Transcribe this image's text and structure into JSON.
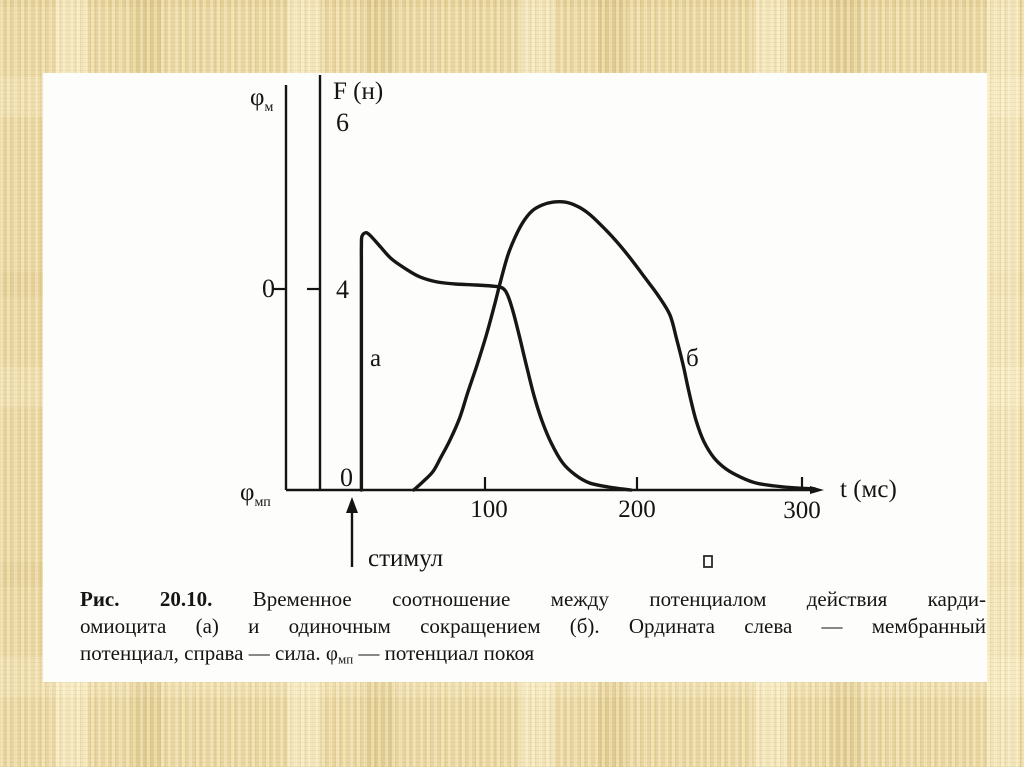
{
  "figure": {
    "kind": "slide-with-textbook-figure",
    "ink_color": "#161616",
    "panel_color": "#fdfdfb",
    "background_color": "#e9d6a0"
  },
  "chart_data": {
    "type": "line",
    "xlabel": "t (мс)",
    "x_unit": "мс",
    "x_ticks": [
      100,
      200,
      300
    ],
    "x_range": [
      0,
      320
    ],
    "grid": false,
    "legend": "inline curve labels",
    "left_axis": {
      "top_label_symbol": "φ",
      "top_label_sub": "м",
      "zero_label": "0",
      "bottom_label_symbol": "φ",
      "bottom_label_sub": "мп"
    },
    "right_axis": {
      "title": "F (н)",
      "unit": "н",
      "top_value": "6",
      "mid_value": "4",
      "zero_value": "0",
      "range": [
        0,
        6
      ]
    },
    "stimulus_label": "стимул",
    "series": [
      {
        "name": "а",
        "points_t_F": [
          [
            22,
            0
          ],
          [
            22,
            1.6
          ],
          [
            22,
            3.2
          ],
          [
            22,
            4.4
          ],
          [
            22,
            4.86
          ],
          [
            22.4,
            5.05
          ],
          [
            25,
            5.12
          ],
          [
            28,
            5.05
          ],
          [
            34,
            4.84
          ],
          [
            41,
            4.6
          ],
          [
            50,
            4.4
          ],
          [
            59,
            4.24
          ],
          [
            70,
            4.14
          ],
          [
            81,
            4.1
          ],
          [
            94,
            4.08
          ],
          [
            104,
            4.06
          ],
          [
            111,
            4.02
          ],
          [
            114.5,
            3.86
          ],
          [
            118,
            3.52
          ],
          [
            122,
            3.02
          ],
          [
            126.5,
            2.43
          ],
          [
            131,
            1.87
          ],
          [
            136,
            1.37
          ],
          [
            142,
            0.92
          ],
          [
            149,
            0.54
          ],
          [
            157,
            0.3
          ],
          [
            166,
            0.14
          ],
          [
            178,
            0.06
          ],
          [
            192,
            0
          ]
        ]
      },
      {
        "name": "б",
        "points_t_F": [
          [
            55,
            0
          ],
          [
            60,
            0.14
          ],
          [
            67,
            0.36
          ],
          [
            72,
            0.64
          ],
          [
            78,
            1
          ],
          [
            84,
            1.43
          ],
          [
            89,
            1.93
          ],
          [
            95,
            2.49
          ],
          [
            101,
            3.1
          ],
          [
            106,
            3.68
          ],
          [
            110,
            4.18
          ],
          [
            114.5,
            4.68
          ],
          [
            119,
            5.03
          ],
          [
            124,
            5.33
          ],
          [
            129.6,
            5.55
          ],
          [
            136,
            5.67
          ],
          [
            143,
            5.73
          ],
          [
            150.5,
            5.73
          ],
          [
            158,
            5.65
          ],
          [
            165,
            5.51
          ],
          [
            172.6,
            5.29
          ],
          [
            182,
            4.98
          ],
          [
            191.5,
            4.62
          ],
          [
            201,
            4.22
          ],
          [
            209,
            3.88
          ],
          [
            216.7,
            3.48
          ],
          [
            221,
            2.99
          ],
          [
            225,
            2.49
          ],
          [
            228.7,
            1.95
          ],
          [
            233.1,
            1.39
          ],
          [
            238.2,
            0.96
          ],
          [
            244.5,
            0.64
          ],
          [
            252,
            0.42
          ],
          [
            261,
            0.26
          ],
          [
            271,
            0.14
          ],
          [
            283,
            0.08
          ],
          [
            296,
            0.04
          ],
          [
            308,
            0.02
          ]
        ]
      }
    ]
  },
  "caption": {
    "fig_label": "Рис. 20.10.",
    "line1": "Временное соотношение между потенциалом действия карди-",
    "line2": "омиоцита (а) и одиночным сокращением (б). Ордината слева — мембранный",
    "line3_pre": "потенциал, справа — сила. φ",
    "line3_sub": "мп",
    "line3_post": " — потенциал покоя"
  }
}
